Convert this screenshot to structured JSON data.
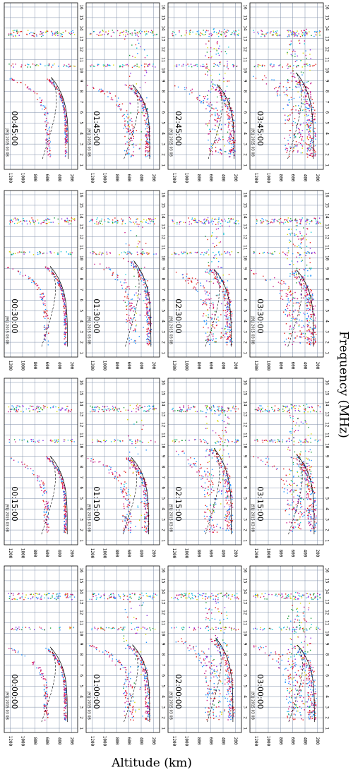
{
  "chart_data": {
    "type": "ionogram-grid",
    "xlabel": "Altitude (km)",
    "ylabel": "Frequency (MHz)",
    "station": "J91J 2015 03 08",
    "xlim": [
      1300,
      100
    ],
    "xticks": [
      200,
      400,
      600,
      800,
      1000,
      1200
    ],
    "ylim": [
      0.6,
      16.4
    ],
    "yticks": [
      1,
      2,
      3,
      4,
      5,
      6,
      7,
      8,
      9,
      10,
      11,
      12,
      13,
      14,
      15,
      16
    ],
    "grid": true,
    "panels": [
      {
        "time": "00:00:00"
      },
      {
        "time": "00:15:00"
      },
      {
        "time": "00:30:00"
      },
      {
        "time": "00:45:00"
      },
      {
        "time": "01:00:00"
      },
      {
        "time": "01:15:00"
      },
      {
        "time": "01:30:00"
      },
      {
        "time": "01:45:00"
      },
      {
        "time": "02:00:00"
      },
      {
        "time": "02:15:00"
      },
      {
        "time": "02:30:00"
      },
      {
        "time": "02:45:00"
      },
      {
        "time": "03:00:00"
      },
      {
        "time": "03:15:00"
      },
      {
        "time": "03:30:00"
      },
      {
        "time": "03:45:00"
      }
    ]
  }
}
